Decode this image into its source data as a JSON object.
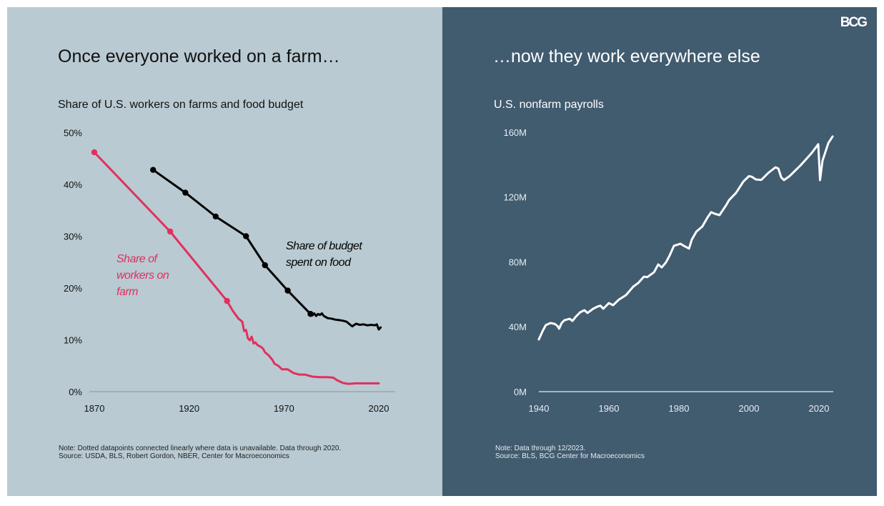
{
  "left": {
    "title": "Once everyone worked on a farm…",
    "note": "Note: Dotted datapoints connected linearly where data is unavailable. Data through 2020.",
    "source": "Source: USDA, BLS, Robert Gordon, NBER, Center for Macroeconomics"
  },
  "right": {
    "title": "…now they work everywhere else",
    "note": "Note: Data through 12/2023.",
    "source": "Source: BLS, BCG Center for Macroeconomics",
    "logo": "BCG"
  },
  "colors": {
    "left_bg": "#b9cad2",
    "right_bg": "#415b6f",
    "farm_workers": "#e0305e",
    "food_budget": "#000000",
    "payrolls": "#ffffff"
  },
  "chart_data": [
    {
      "type": "line",
      "title": "Share of U.S. workers on farms and food budget",
      "xlabel": "",
      "ylabel": "",
      "xlim": [
        1870,
        2020
      ],
      "ylim": [
        0,
        50
      ],
      "x_ticks": [
        1870,
        1920,
        1970,
        2020
      ],
      "x_tick_labels": [
        "1870",
        "1920",
        "1970",
        "2020"
      ],
      "y_ticks": [
        0,
        10,
        20,
        30,
        40,
        50
      ],
      "y_tick_labels": [
        "0%",
        "10%",
        "20%",
        "30%",
        "40%",
        "50%"
      ],
      "grid": false,
      "legend": "inline annotations",
      "series": [
        {
          "name": "Share of workers on farm",
          "annotation": [
            "Share of",
            "workers on",
            "farm"
          ],
          "markers": [
            [
              1870,
              46.2
            ],
            [
              1910,
              30.9
            ],
            [
              1940,
              17.5
            ]
          ],
          "points": [
            [
              1870,
              46.2
            ],
            [
              1910,
              30.9
            ],
            [
              1940,
              17.5
            ],
            [
              1943,
              15.6
            ],
            [
              1946,
              14.1
            ],
            [
              1948,
              13.5
            ],
            [
              1949,
              11.7
            ],
            [
              1950,
              11.9
            ],
            [
              1951,
              10.3
            ],
            [
              1952,
              9.9
            ],
            [
              1953,
              10.6
            ],
            [
              1954,
              9.3
            ],
            [
              1955,
              9.5
            ],
            [
              1956,
              9.0
            ],
            [
              1958,
              8.6
            ],
            [
              1959,
              8.3
            ],
            [
              1960,
              7.6
            ],
            [
              1962,
              7.0
            ],
            [
              1964,
              6.1
            ],
            [
              1965,
              5.4
            ],
            [
              1967,
              5.0
            ],
            [
              1969,
              4.3
            ],
            [
              1972,
              4.3
            ],
            [
              1975,
              3.6
            ],
            [
              1978,
              3.3
            ],
            [
              1981,
              3.3
            ],
            [
              1985,
              2.9
            ],
            [
              1989,
              2.8
            ],
            [
              1993,
              2.8
            ],
            [
              1996,
              2.7
            ],
            [
              1998,
              2.2
            ],
            [
              2001,
              1.7
            ],
            [
              2004,
              1.5
            ],
            [
              2008,
              1.6
            ],
            [
              2012,
              1.6
            ],
            [
              2016,
              1.6
            ],
            [
              2020,
              1.6
            ]
          ]
        },
        {
          "name": "Share of budget spent on food",
          "annotation": [
            "Share of budget",
            "spent on food"
          ],
          "markers": [
            [
              1901,
              42.8
            ],
            [
              1918,
              38.4
            ],
            [
              1934,
              33.8
            ],
            [
              1950,
              30.0
            ],
            [
              1960,
              24.4
            ],
            [
              1972,
              19.5
            ],
            [
              1984,
              15.0
            ]
          ],
          "points": [
            [
              1901,
              42.8
            ],
            [
              1918,
              38.4
            ],
            [
              1934,
              33.8
            ],
            [
              1950,
              30.0
            ],
            [
              1960,
              24.4
            ],
            [
              1972,
              19.5
            ],
            [
              1984,
              15.0
            ],
            [
              1985,
              14.7
            ],
            [
              1986,
              15.1
            ],
            [
              1987,
              14.6
            ],
            [
              1988,
              15.0
            ],
            [
              1989,
              14.8
            ],
            [
              1990,
              15.1
            ],
            [
              1991,
              14.6
            ],
            [
              1992,
              14.4
            ],
            [
              1993,
              14.2
            ],
            [
              1995,
              14.1
            ],
            [
              1997,
              13.9
            ],
            [
              1999,
              13.8
            ],
            [
              2001,
              13.7
            ],
            [
              2003,
              13.5
            ],
            [
              2005,
              12.9
            ],
            [
              2006,
              12.6
            ],
            [
              2008,
              13.1
            ],
            [
              2010,
              12.9
            ],
            [
              2012,
              13.0
            ],
            [
              2014,
              12.8
            ],
            [
              2016,
              12.9
            ],
            [
              2018,
              12.8
            ],
            [
              2019,
              13.0
            ],
            [
              2020,
              12.0
            ],
            [
              2021,
              12.4
            ]
          ]
        }
      ]
    },
    {
      "type": "line",
      "title": "U.S. nonfarm payrolls",
      "xlabel": "",
      "ylabel": "",
      "xlim": [
        1940,
        2024
      ],
      "ylim": [
        0,
        160
      ],
      "x_ticks": [
        1940,
        1960,
        1980,
        2000,
        2020
      ],
      "x_tick_labels": [
        "1940",
        "1960",
        "1980",
        "2000",
        "2020"
      ],
      "y_ticks": [
        0,
        40,
        80,
        120,
        160
      ],
      "y_tick_labels": [
        "0M",
        "40M",
        "80M",
        "120M",
        "160M"
      ],
      "grid": false,
      "legend": "none",
      "series": [
        {
          "name": "U.S. nonfarm payrolls (millions)",
          "points": [
            [
              1940.0,
              32.2
            ],
            [
              1941.2,
              37.9
            ],
            [
              1942.0,
              41.0
            ],
            [
              1943.3,
              42.3
            ],
            [
              1944.5,
              41.8
            ],
            [
              1945.3,
              40.5
            ],
            [
              1945.8,
              38.8
            ],
            [
              1946.5,
              42.3
            ],
            [
              1947.3,
              44.0
            ],
            [
              1948.8,
              44.9
            ],
            [
              1949.6,
              43.6
            ],
            [
              1950.6,
              46.3
            ],
            [
              1951.8,
              48.9
            ],
            [
              1953.0,
              50.2
            ],
            [
              1953.9,
              48.5
            ],
            [
              1955.5,
              51.1
            ],
            [
              1956.7,
              52.4
            ],
            [
              1957.6,
              53.0
            ],
            [
              1958.4,
              51.1
            ],
            [
              1960.0,
              54.6
            ],
            [
              1961.2,
              53.3
            ],
            [
              1962.9,
              56.8
            ],
            [
              1964.9,
              59.5
            ],
            [
              1967.0,
              64.8
            ],
            [
              1968.4,
              67.0
            ],
            [
              1970.0,
              70.9
            ],
            [
              1971.0,
              70.6
            ],
            [
              1972.9,
              73.6
            ],
            [
              1974.1,
              78.4
            ],
            [
              1975.1,
              76.6
            ],
            [
              1976.3,
              79.7
            ],
            [
              1977.3,
              83.7
            ],
            [
              1978.6,
              89.9
            ],
            [
              1979.8,
              90.7
            ],
            [
              1980.4,
              91.2
            ],
            [
              1981.4,
              89.9
            ],
            [
              1982.9,
              88.2
            ],
            [
              1983.7,
              93.8
            ],
            [
              1985.0,
              98.7
            ],
            [
              1986.7,
              101.8
            ],
            [
              1988.2,
              107.5
            ],
            [
              1989.2,
              110.6
            ],
            [
              1990.2,
              109.7
            ],
            [
              1991.6,
              108.8
            ],
            [
              1993.5,
              115.0
            ],
            [
              1994.3,
              118.0
            ],
            [
              1996.3,
              122.5
            ],
            [
              1998.4,
              129.5
            ],
            [
              2000.0,
              132.8
            ],
            [
              2000.8,
              132.5
            ],
            [
              2002.0,
              130.8
            ],
            [
              2003.5,
              130.5
            ],
            [
              2005.5,
              134.8
            ],
            [
              2007.6,
              138.3
            ],
            [
              2008.4,
              137.5
            ],
            [
              2009.2,
              132.1
            ],
            [
              2010.0,
              130.4
            ],
            [
              2011.6,
              132.8
            ],
            [
              2014.7,
              139.4
            ],
            [
              2017.8,
              146.8
            ],
            [
              2019.8,
              152.5
            ],
            [
              2020.3,
              130.4
            ],
            [
              2021.0,
              142.3
            ],
            [
              2022.7,
              153.3
            ],
            [
              2023.9,
              157.3
            ]
          ]
        }
      ]
    }
  ]
}
